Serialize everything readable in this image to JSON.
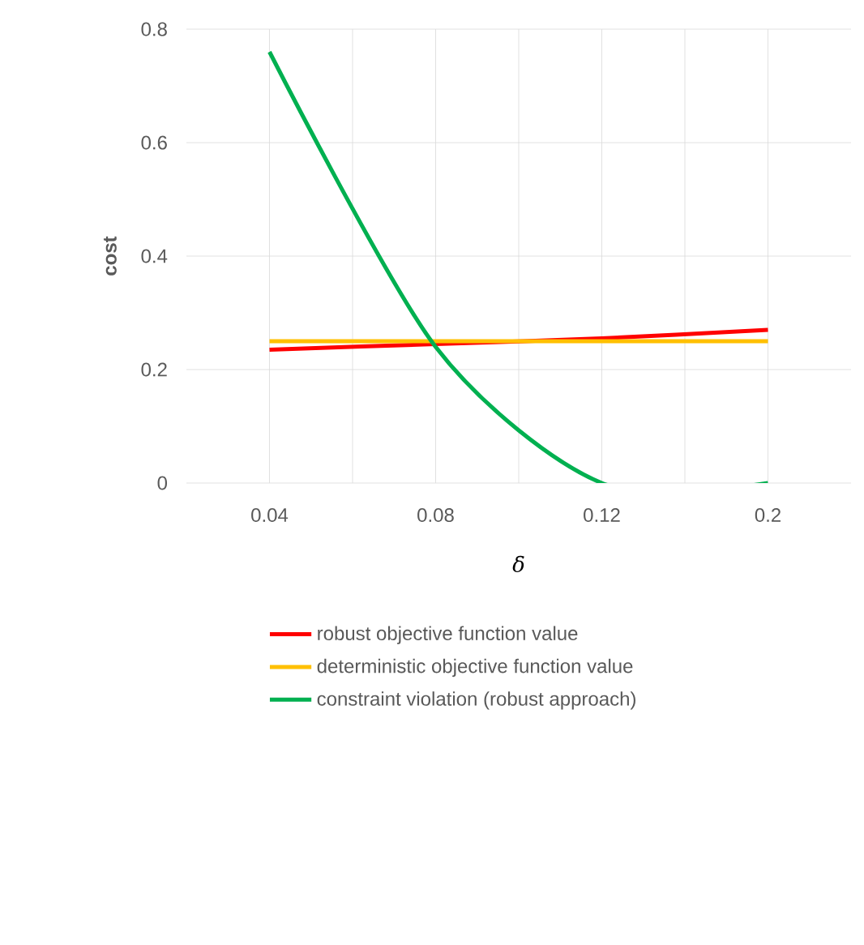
{
  "chart_data": {
    "type": "line",
    "xlabel": "δ",
    "ylabel": "cost",
    "categories": [
      "0.04",
      "0.08",
      "0.12",
      "0.2"
    ],
    "series": [
      {
        "name": "robust objective function value",
        "color": "#ff0000",
        "values": [
          0.235,
          0.245,
          0.255,
          0.27
        ]
      },
      {
        "name": "deterministic objective function value",
        "color": "#ffc000",
        "values": [
          0.25,
          0.25,
          0.25,
          0.25
        ]
      },
      {
        "name": "constraint violation (robust approach)",
        "color": "#00b050",
        "values": [
          0.76,
          0.24,
          0,
          0
        ]
      }
    ],
    "ylim": [
      0,
      0.8
    ],
    "yticks": [
      0,
      0.2,
      0.4,
      0.6,
      0.8
    ],
    "grid": true,
    "legend": "bottom",
    "marker": "none",
    "line_style": "solid"
  }
}
